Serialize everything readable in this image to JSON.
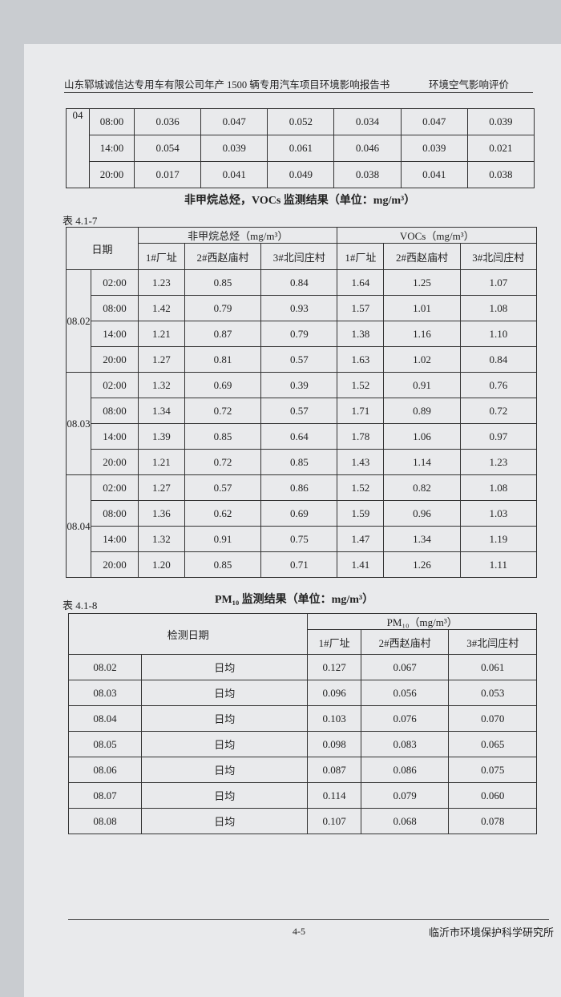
{
  "header": {
    "title": "山东郓城诚信达专用车有限公司年产 1500 辆专用汽车项目环境影响报告书",
    "section": "环境空气影响评价"
  },
  "table_top": {
    "date": "04",
    "rows": [
      {
        "time": "08:00",
        "values": [
          "0.036",
          "0.047",
          "0.052",
          "0.034",
          "0.047",
          "0.039"
        ]
      },
      {
        "time": "14:00",
        "values": [
          "0.054",
          "0.039",
          "0.061",
          "0.046",
          "0.039",
          "0.021"
        ]
      },
      {
        "time": "20:00",
        "values": [
          "0.017",
          "0.041",
          "0.049",
          "0.038",
          "0.041",
          "0.038"
        ]
      }
    ]
  },
  "table_4_1_7": {
    "label": "表 4.1-7",
    "title": "非甲烷总烃，VOCs 监测结果（单位：mg/m³）",
    "date_header": "日期",
    "group_headers": [
      "非甲烷总烃（mg/m³）",
      "VOCs（mg/m³）"
    ],
    "sub_headers": [
      "1#厂址",
      "2#西赵庙村",
      "3#北闫庄村",
      "1#厂址",
      "2#西赵庙村",
      "3#北闫庄村"
    ],
    "groups": [
      {
        "date": "08.02",
        "rows": [
          {
            "time": "02:00",
            "values": [
              "1.23",
              "0.85",
              "0.84",
              "1.64",
              "1.25",
              "1.07"
            ]
          },
          {
            "time": "08:00",
            "values": [
              "1.42",
              "0.79",
              "0.93",
              "1.57",
              "1.01",
              "1.08"
            ]
          },
          {
            "time": "14:00",
            "values": [
              "1.21",
              "0.87",
              "0.79",
              "1.38",
              "1.16",
              "1.10"
            ]
          },
          {
            "time": "20:00",
            "values": [
              "1.27",
              "0.81",
              "0.57",
              "1.63",
              "1.02",
              "0.84"
            ]
          }
        ]
      },
      {
        "date": "08.03",
        "rows": [
          {
            "time": "02:00",
            "values": [
              "1.32",
              "0.69",
              "0.39",
              "1.52",
              "0.91",
              "0.76"
            ]
          },
          {
            "time": "08:00",
            "values": [
              "1.34",
              "0.72",
              "0.57",
              "1.71",
              "0.89",
              "0.72"
            ]
          },
          {
            "time": "14:00",
            "values": [
              "1.39",
              "0.85",
              "0.64",
              "1.78",
              "1.06",
              "0.97"
            ]
          },
          {
            "time": "20:00",
            "values": [
              "1.21",
              "0.72",
              "0.85",
              "1.43",
              "1.14",
              "1.23"
            ]
          }
        ]
      },
      {
        "date": "08.04",
        "rows": [
          {
            "time": "02:00",
            "values": [
              "1.27",
              "0.57",
              "0.86",
              "1.52",
              "0.82",
              "1.08"
            ]
          },
          {
            "time": "08:00",
            "values": [
              "1.36",
              "0.62",
              "0.69",
              "1.59",
              "0.96",
              "1.03"
            ]
          },
          {
            "time": "14:00",
            "values": [
              "1.32",
              "0.91",
              "0.75",
              "1.47",
              "1.34",
              "1.19"
            ]
          },
          {
            "time": "20:00",
            "values": [
              "1.20",
              "0.85",
              "0.71",
              "1.41",
              "1.26",
              "1.11"
            ]
          }
        ]
      }
    ]
  },
  "table_4_1_8": {
    "label": "表 4.1-8",
    "title": "PM₁₀ 监测结果（单位：mg/m³）",
    "date_header": "检测日期",
    "group_header": "PM₁₀（mg/m³）",
    "sub_headers": [
      "1#厂址",
      "2#西赵庙村",
      "3#北闫庄村"
    ],
    "rows": [
      {
        "date": "08.02",
        "period": "日均",
        "values": [
          "0.127",
          "0.067",
          "0.061"
        ]
      },
      {
        "date": "08.03",
        "period": "日均",
        "values": [
          "0.096",
          "0.056",
          "0.053"
        ]
      },
      {
        "date": "08.04",
        "period": "日均",
        "values": [
          "0.103",
          "0.076",
          "0.070"
        ]
      },
      {
        "date": "08.05",
        "period": "日均",
        "values": [
          "0.098",
          "0.083",
          "0.065"
        ]
      },
      {
        "date": "08.06",
        "period": "日均",
        "values": [
          "0.087",
          "0.086",
          "0.075"
        ]
      },
      {
        "date": "08.07",
        "period": "日均",
        "values": [
          "0.114",
          "0.079",
          "0.060"
        ]
      },
      {
        "date": "08.08",
        "period": "日均",
        "values": [
          "0.107",
          "0.068",
          "0.078"
        ]
      }
    ]
  },
  "footer": {
    "page": "4-5",
    "org": "临沂市环境保护科学研究所"
  }
}
